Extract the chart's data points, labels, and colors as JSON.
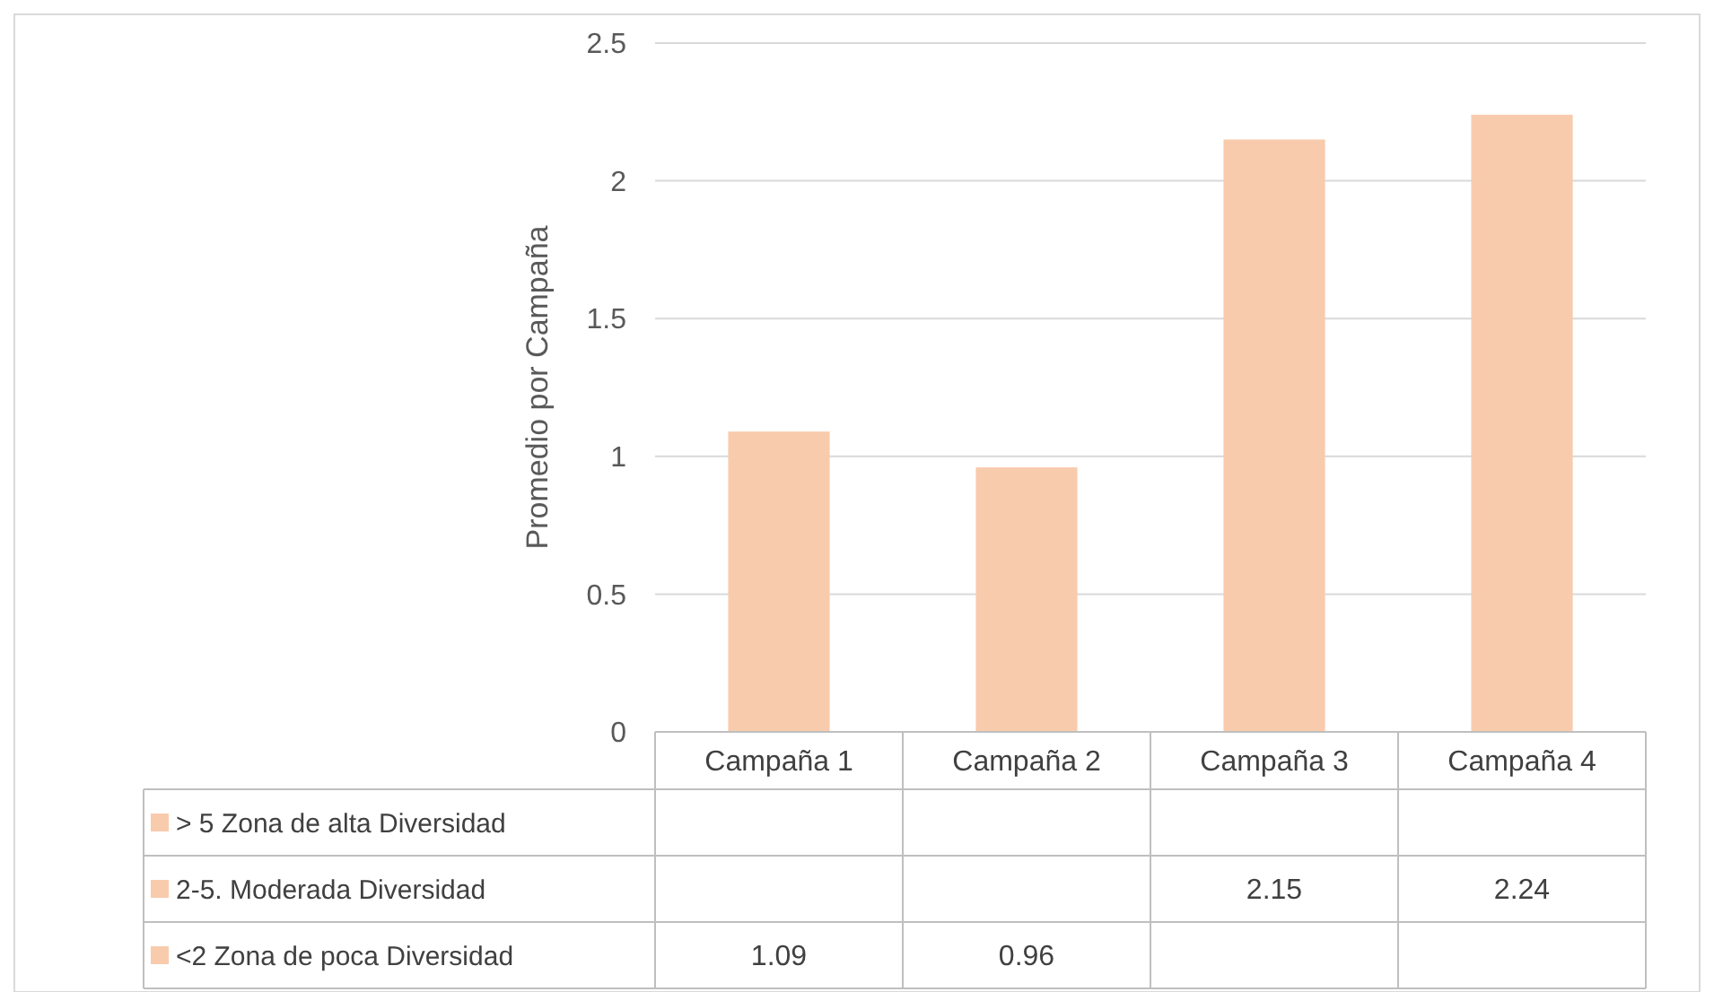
{
  "chart_data": {
    "type": "bar",
    "ylabel": "Promedio por Campaña",
    "categories": [
      "Campaña 1",
      "Campaña 2",
      "Campaña 3",
      "Campaña 4"
    ],
    "series": [
      {
        "name": "> 5 Zona de alta Diversidad",
        "color": "#f8cbad",
        "values": [
          null,
          null,
          null,
          null
        ]
      },
      {
        "name": "2-5. Moderada Diversidad",
        "color": "#f8cbad",
        "values": [
          null,
          null,
          2.15,
          2.24
        ]
      },
      {
        "name": "<2 Zona de poca Diversidad",
        "color": "#f8cbad",
        "values": [
          1.09,
          0.96,
          null,
          null
        ]
      }
    ],
    "stacked": true,
    "ylim": [
      0,
      2.5
    ],
    "yticks": [
      0,
      0.5,
      1,
      1.5,
      2,
      2.5
    ],
    "grid": "y",
    "legend": "bottom left",
    "data_labels": true
  }
}
